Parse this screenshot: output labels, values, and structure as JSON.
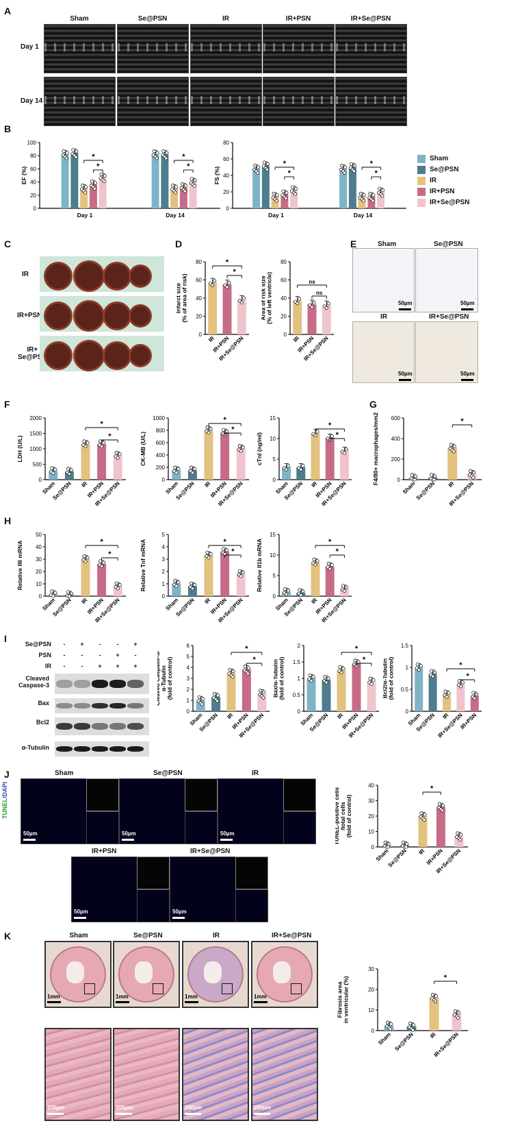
{
  "colors": {
    "Sham": "#7fb4c6",
    "Se@PSN": "#4e7d8d",
    "IR": "#e3c27f",
    "IR+PSN": "#c86b86",
    "IR+Se@PSN": "#f0c4cc"
  },
  "panels": {
    "A": {
      "letter": "A",
      "groups": [
        "Sham",
        "Se@PSN",
        "IR",
        "IR+PSN",
        "IR+Se@PSN"
      ],
      "rows": [
        "Day 1",
        "Day 14"
      ]
    },
    "B": {
      "letter": "B",
      "legend": [
        "Sham",
        "Se@PSN",
        "IR",
        "IR+PSN",
        "IR+Se@PSN"
      ]
    },
    "C": {
      "letter": "C",
      "rows": [
        "IR",
        "IR+PSN",
        "IR+\nSe@PSN"
      ]
    },
    "D": {
      "letter": "D"
    },
    "E": {
      "letter": "E",
      "labels": [
        "Sham",
        "Se@PSN",
        "IR",
        "IR+Se@PSN"
      ],
      "scale": "50µm"
    },
    "F": {
      "letter": "F"
    },
    "G": {
      "letter": "G"
    },
    "H": {
      "letter": "H"
    },
    "I": {
      "letter": "I",
      "row_labels": [
        "Se@PSN",
        "PSN",
        "IR"
      ],
      "signs": [
        [
          "-",
          "+",
          "-",
          "-",
          "+"
        ],
        [
          "-",
          "-",
          "-",
          "+",
          "-"
        ],
        [
          "-",
          "-",
          "+",
          "+",
          "+"
        ]
      ],
      "blots": [
        "Cleaved\nCaspase-3",
        "Bax",
        "Bcl2",
        "α-Tubulin"
      ]
    },
    "J": {
      "letter": "J",
      "stain_a": "TUNEL",
      "stain_b": "/DAPI",
      "labels": [
        "Sham",
        "Se@PSN",
        "IR",
        "IR+PSN",
        "IR+Se@PSN"
      ],
      "scale": "50µm"
    },
    "K": {
      "letter": "K",
      "labels": [
        "Sham",
        "Se@PSN",
        "IR",
        "IR+Se@PSN"
      ],
      "scale_top": "1mm",
      "scale_bottom": "200µm"
    }
  },
  "chart_data": [
    {
      "id": "B-EF",
      "type": "bar",
      "ylabel": "EF (%)",
      "ylim": [
        0,
        100
      ],
      "yticks": [
        0,
        20,
        40,
        60,
        80,
        100
      ],
      "categories": [
        "Day 1",
        "Day 14"
      ],
      "series": [
        {
          "name": "Sham",
          "values": [
            82,
            82
          ]
        },
        {
          "name": "Se@PSN",
          "values": [
            84,
            82
          ]
        },
        {
          "name": "IR",
          "values": [
            30,
            30
          ]
        },
        {
          "name": "IR+PSN",
          "values": [
            36,
            32
          ]
        },
        {
          "name": "IR+Se@PSN",
          "values": [
            47,
            40
          ]
        }
      ],
      "sig": [
        "*",
        "*",
        "*",
        "*"
      ]
    },
    {
      "id": "B-FS",
      "type": "bar",
      "ylabel": "FS (%)",
      "ylim": [
        0,
        80
      ],
      "yticks": [
        0,
        20,
        40,
        60,
        80
      ],
      "categories": [
        "Day 1",
        "Day 14"
      ],
      "series": [
        {
          "name": "Sham",
          "values": [
            48,
            48
          ]
        },
        {
          "name": "Se@PSN",
          "values": [
            52,
            50
          ]
        },
        {
          "name": "IR",
          "values": [
            14,
            14
          ]
        },
        {
          "name": "IR+PSN",
          "values": [
            17,
            14
          ]
        },
        {
          "name": "IR+Se@PSN",
          "values": [
            22,
            20
          ]
        }
      ],
      "sig": [
        "*",
        "*",
        "*",
        "*"
      ]
    },
    {
      "id": "D-infarct",
      "type": "bar",
      "ylabel": "Infarct size\n(% of area of risk)",
      "ylim": [
        0,
        80
      ],
      "yticks": [
        0,
        20,
        40,
        60,
        80
      ],
      "categories": [
        "IR",
        "IR+PSN",
        "IR+Se@PSN"
      ],
      "values": [
        57,
        55,
        38
      ],
      "sig": [
        "*",
        "*"
      ]
    },
    {
      "id": "D-risk",
      "type": "bar",
      "ylabel": "Area of risk size\n(% of left ventricle)",
      "ylim": [
        0,
        80
      ],
      "yticks": [
        0,
        20,
        40,
        60,
        80
      ],
      "categories": [
        "IR",
        "IR+PSN",
        "IR+Se@PSN"
      ],
      "values": [
        37,
        33,
        32
      ],
      "sig": [
        "ns",
        "ns"
      ]
    },
    {
      "id": "F-LDH",
      "type": "bar",
      "ylabel": "LDH (U/L)",
      "ylim": [
        0,
        2000
      ],
      "yticks": [
        0,
        500,
        1000,
        1500,
        2000
      ],
      "categories": [
        "Sham",
        "Se@PSN",
        "IR",
        "IR+PSN",
        "IR+Se@PSN"
      ],
      "values": [
        280,
        260,
        1150,
        1150,
        780
      ],
      "sig": [
        "*",
        "*"
      ]
    },
    {
      "id": "F-CKMB",
      "type": "bar",
      "ylabel": "CK-MB (U/L)",
      "ylim": [
        0,
        1000
      ],
      "yticks": [
        0,
        200,
        400,
        600,
        800,
        1000
      ],
      "categories": [
        "Sham",
        "Se@PSN",
        "IR",
        "IR+PSN",
        "IR+Se@PSN"
      ],
      "values": [
        150,
        150,
        800,
        760,
        500
      ],
      "sig": [
        "*",
        "*"
      ]
    },
    {
      "id": "F-cTnI",
      "type": "bar",
      "ylabel": "cTnI (ng/ml)",
      "ylim": [
        0,
        15
      ],
      "yticks": [
        0,
        5,
        10,
        15
      ],
      "categories": [
        "Sham",
        "Se@PSN",
        "IR",
        "IR+PSN",
        "IR+Se@PSN"
      ],
      "values": [
        3,
        3,
        11.3,
        10.2,
        7
      ],
      "sig": [
        "*",
        "*"
      ]
    },
    {
      "id": "G-F480",
      "type": "bar",
      "ylabel": "F4/80+ macrophages/mm2",
      "ylim": [
        0,
        600
      ],
      "yticks": [
        0,
        200,
        400,
        600
      ],
      "categories": [
        "Sham",
        "Se@PSN",
        "IR",
        "IR+Se@PSN"
      ],
      "values": [
        18,
        18,
        310,
        55
      ],
      "sig": [
        "*"
      ]
    },
    {
      "id": "H-Il6",
      "type": "bar",
      "ylabel": "Relative Il6 mRNA",
      "ylim": [
        0,
        50
      ],
      "yticks": [
        0,
        10,
        20,
        30,
        40,
        50
      ],
      "categories": [
        "Sham",
        "Se@PSN",
        "IR",
        "IR+PSN",
        "IR+Se@PSN"
      ],
      "values": [
        1.5,
        1,
        30,
        26,
        8
      ],
      "sig": [
        "*",
        "*"
      ]
    },
    {
      "id": "H-Tnf",
      "type": "bar",
      "ylabel": "Relative Tnf mRNA",
      "ylim": [
        0,
        5
      ],
      "yticks": [
        0,
        1,
        2,
        3,
        4,
        5
      ],
      "categories": [
        "Sham",
        "Se@PSN",
        "IR",
        "IR+PSN",
        "IR+Se@PSN"
      ],
      "values": [
        1,
        0.8,
        3.3,
        3.6,
        1.8
      ],
      "sig": [
        "*",
        "*"
      ]
    },
    {
      "id": "H-Il1b",
      "type": "bar",
      "ylabel": "Relative Il1b mRNA",
      "ylim": [
        0,
        15
      ],
      "yticks": [
        0,
        5,
        10,
        15
      ],
      "categories": [
        "Sham",
        "Se@PSN",
        "IR",
        "IR+PSN",
        "IR+Se@PSN"
      ],
      "values": [
        1,
        0.8,
        8.2,
        7.2,
        1.8
      ],
      "sig": [
        "*",
        "*"
      ]
    },
    {
      "id": "I-Casp3",
      "type": "bar",
      "ylabel": "Cleaved Caspase-3/\nα-Tubulin\n(fold of control)",
      "ylim": [
        0,
        6
      ],
      "yticks": [
        0,
        1,
        2,
        3,
        4,
        5,
        6
      ],
      "categories": [
        "Sham",
        "Se@PSN",
        "IR",
        "IR+PSN",
        "IR+Se@PSN"
      ],
      "values": [
        1,
        1.3,
        3.5,
        3.8,
        1.6
      ],
      "sig": [
        "*",
        "*"
      ]
    },
    {
      "id": "I-Bax",
      "type": "bar",
      "ylabel": "Bax/α-Tubulin\n(fold of control)",
      "ylim": [
        0,
        2
      ],
      "yticks": [
        0,
        0.5,
        1.0,
        1.5,
        2.0
      ],
      "categories": [
        "Sham",
        "Se@PSN",
        "IR",
        "IR+PSN",
        "IR+Se@PSN"
      ],
      "values": [
        1,
        0.95,
        1.25,
        1.45,
        0.9
      ],
      "sig": [
        "*",
        "*"
      ]
    },
    {
      "id": "I-Bcl2",
      "type": "bar",
      "ylabel": "Bcl2/α-Tubulin\n(fold of control)",
      "ylim": [
        0,
        1.5
      ],
      "yticks": [
        0,
        0.5,
        1.0,
        1.5
      ],
      "categories": [
        "Sham",
        "Se@PSN",
        "IR",
        "IR+Se@PSN",
        "IR+PSN"
      ],
      "values": [
        1,
        0.85,
        0.38,
        0.62,
        0.35
      ],
      "sig": [
        "*",
        "*"
      ]
    },
    {
      "id": "J-TUNEL",
      "type": "bar",
      "ylabel": "TUNEL-positive cells\n/total cells\n(fold of control)",
      "ylim": [
        0,
        40
      ],
      "yticks": [
        0,
        10,
        20,
        30,
        40
      ],
      "categories": [
        "Sham",
        "Se@PSN",
        "IR",
        "IR+PSN",
        "IR+Se@PSN"
      ],
      "values": [
        1,
        1,
        20,
        26,
        7
      ],
      "sig": [
        "*"
      ]
    },
    {
      "id": "K-Fibrosis",
      "type": "bar",
      "ylabel": "Fibrosis area\nin ventricular (%)",
      "ylim": [
        0,
        30
      ],
      "yticks": [
        0,
        10,
        20,
        30
      ],
      "categories": [
        "Sham",
        "Se@PSN",
        "IR",
        "IR+Se@PSN"
      ],
      "values": [
        2.5,
        2,
        16,
        8
      ],
      "sig": [
        "*"
      ]
    }
  ]
}
